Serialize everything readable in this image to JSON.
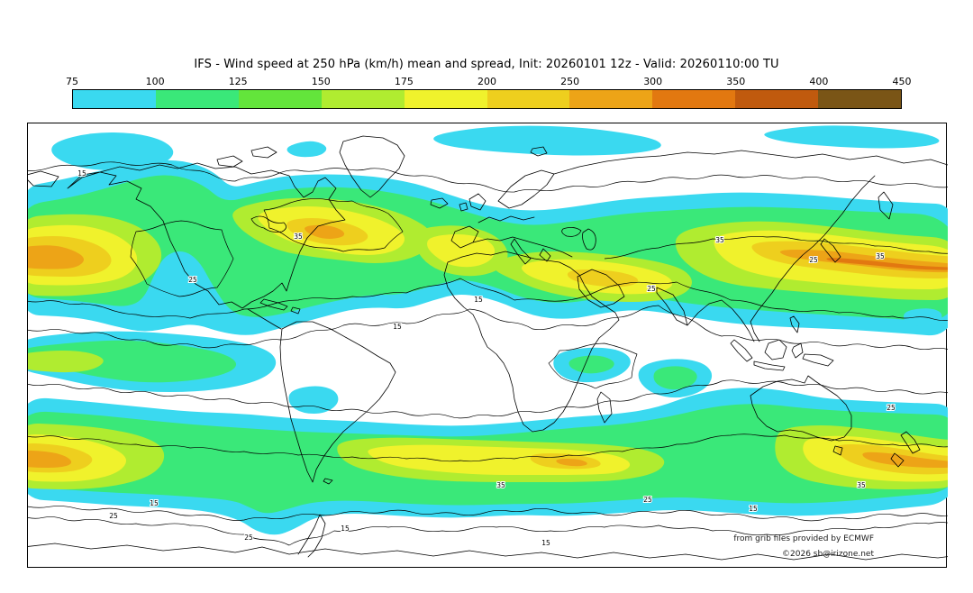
{
  "header": {
    "title": "IFS - Wind speed at 250 hPa (km/h) mean and spread, Init: 20260101 12z - Valid: 20260110:00 TU"
  },
  "credits": {
    "source": "from grib files provided by ECMWF",
    "copyright": "©2026 sb@irizone.net"
  },
  "chart_data": {
    "type": "heatmap",
    "title": "IFS - Wind speed at 250 hPa (km/h) mean and spread, Init: 20260101 12z - Valid: 20260110:00 TU",
    "model": "IFS",
    "variable": "Wind speed at 250 hPa (km/h)",
    "statistic": "mean and spread",
    "init": "20260101 12z",
    "valid": "20260110:00 TU",
    "projection": "global cylindrical world map",
    "colorbar": {
      "orientation": "horizontal",
      "position": "top",
      "units": "km/h",
      "levels": [
        75,
        100,
        125,
        150,
        175,
        200,
        250,
        300,
        350,
        400,
        450
      ],
      "colors": [
        "#3ad9f0",
        "#3ae879",
        "#63e53b",
        "#b0ec30",
        "#f0f22c",
        "#eecf1e",
        "#eda417",
        "#e27810",
        "#c05a0e",
        "#7a5516"
      ]
    },
    "spread_contour_labels": [
      "15",
      "25",
      "35"
    ],
    "map_colors": {
      "background": "#ffffff",
      "coastlines": "#000000",
      "spread_contours": "#000000"
    },
    "features": [
      "Northern hemisphere jet band with maxima at left edge, over the North Atlantic and strongest over the North Pacific / East Asia (250-350 km/h)",
      "Southern hemisphere circumpolar jet band with maxima near the left edge, mid Indian Ocean and strongest at the right edge (250-350 km/h)",
      "Scattered 75-125 km/h patches in the Arctic and tropics",
      "Ensemble spread contours labeled 15, 25 and 35"
    ]
  }
}
